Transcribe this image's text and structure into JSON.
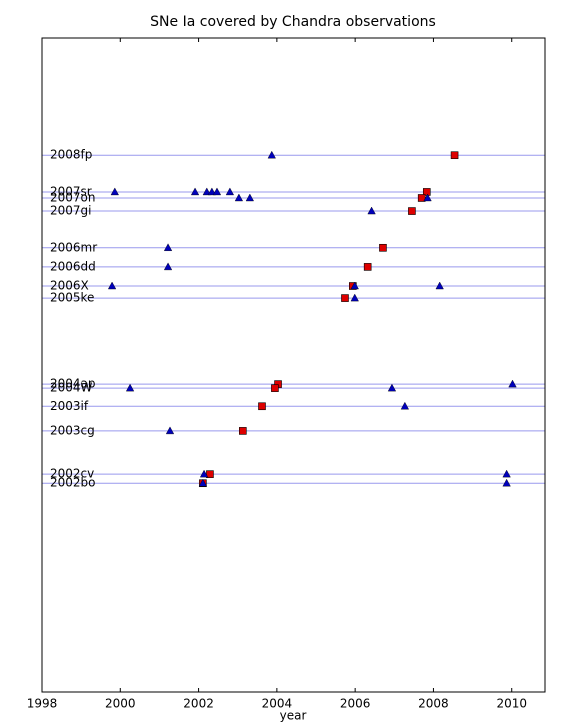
{
  "chart_data": {
    "type": "scatter",
    "title": "SNe Ia covered by Chandra observations",
    "xlabel": "year",
    "xlim": [
      1998,
      2010.85
    ],
    "xticks": [
      1998,
      2000,
      2002,
      2004,
      2006,
      2008,
      2010
    ],
    "ylim": [
      1998,
      2011
    ],
    "y_inverted": true,
    "row_line_color": "#9999ee",
    "observation_color": "#0000bb",
    "discovery_color": "#dd0000",
    "sne": [
      {
        "name": "2008fp",
        "y": 2008.67,
        "discovery": 2008.54,
        "observations": [
          2003.87
        ]
      },
      {
        "name": "2007sr",
        "y": 2007.94,
        "discovery": 2007.83,
        "observations": [
          1999.86,
          2001.91,
          2002.21,
          2002.34,
          2002.47,
          2002.8
        ]
      },
      {
        "name": "2007on",
        "y": 2007.82,
        "discovery": 2007.7,
        "observations": [
          2003.03,
          2003.31,
          2007.85
        ]
      },
      {
        "name": "2007gi",
        "y": 2007.56,
        "discovery": 2007.45,
        "observations": [
          2006.42
        ]
      },
      {
        "name": "2006mr",
        "y": 2006.83,
        "discovery": 2006.71,
        "observations": [
          2001.22
        ]
      },
      {
        "name": "2006dd",
        "y": 2006.45,
        "discovery": 2006.32,
        "observations": [
          2001.22
        ]
      },
      {
        "name": "2006X",
        "y": 2006.07,
        "discovery": 2005.94,
        "observations": [
          1999.79,
          2005.99,
          2008.16
        ]
      },
      {
        "name": "2005ke",
        "y": 2005.83,
        "discovery": 2005.74,
        "observations": [
          2005.99
        ]
      },
      {
        "name": "2004ap",
        "y": 2004.12,
        "discovery": 2004.03,
        "observations": [
          2010.02
        ]
      },
      {
        "name": "2004W",
        "y": 2004.04,
        "discovery": 2003.95,
        "observations": [
          2000.25,
          2006.94
        ]
      },
      {
        "name": "2003if",
        "y": 2003.68,
        "discovery": 2003.62,
        "observations": [
          2007.27
        ]
      },
      {
        "name": "2003cg",
        "y": 2003.19,
        "discovery": 2003.13,
        "observations": [
          2001.27
        ]
      },
      {
        "name": "2002cv",
        "y": 2002.33,
        "discovery": 2002.29,
        "observations": [
          2002.14,
          2009.87
        ]
      },
      {
        "name": "2002bo",
        "y": 2002.15,
        "discovery": 2002.11,
        "observations": [
          2002.11,
          2009.87
        ]
      }
    ]
  }
}
